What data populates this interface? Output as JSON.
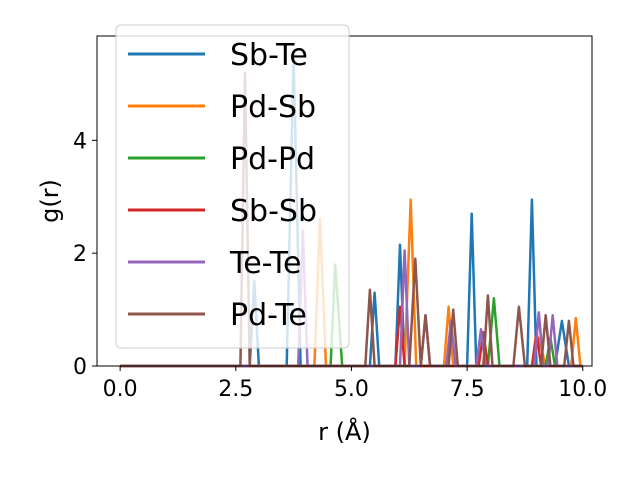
{
  "chart_data": {
    "type": "line",
    "title": "",
    "xlabel": "r (Å)",
    "ylabel": "g(r)",
    "xlim": [
      -0.5,
      10.2
    ],
    "ylim": [
      0,
      5.85
    ],
    "xticks": [
      0.0,
      2.5,
      5.0,
      7.5,
      10.0
    ],
    "xtick_labels": [
      "0.0",
      "2.5",
      "5.0",
      "7.5",
      "10.0"
    ],
    "yticks": [
      0,
      2,
      4
    ],
    "ytick_labels": [
      "0",
      "2",
      "4"
    ],
    "grid": false,
    "legend_position": "upper-left",
    "series": [
      {
        "name": "Sb-Te",
        "color": "#1f77b4",
        "points": [
          [
            0,
            0
          ],
          [
            2.8,
            0
          ],
          [
            2.9,
            1.5
          ],
          [
            3.0,
            0
          ],
          [
            3.6,
            0
          ],
          [
            3.75,
            5.5
          ],
          [
            3.9,
            0
          ],
          [
            5.4,
            0
          ],
          [
            5.5,
            1.3
          ],
          [
            5.6,
            0
          ],
          [
            5.95,
            0
          ],
          [
            6.05,
            2.15
          ],
          [
            6.15,
            0
          ],
          [
            7.5,
            0
          ],
          [
            7.6,
            2.7
          ],
          [
            7.7,
            0
          ],
          [
            8.8,
            0
          ],
          [
            8.9,
            2.95
          ],
          [
            9.0,
            0
          ],
          [
            9.4,
            0
          ],
          [
            9.55,
            0.8
          ],
          [
            9.7,
            0
          ],
          [
            10.0,
            0
          ]
        ]
      },
      {
        "name": "Pd-Sb",
        "color": "#ff7f0e",
        "points": [
          [
            0,
            0
          ],
          [
            4.2,
            0
          ],
          [
            4.32,
            2.6
          ],
          [
            4.45,
            0
          ],
          [
            6.15,
            0
          ],
          [
            6.28,
            2.95
          ],
          [
            6.4,
            0
          ],
          [
            7.0,
            0
          ],
          [
            7.1,
            1.05
          ],
          [
            7.2,
            0
          ],
          [
            8.9,
            0
          ],
          [
            9.05,
            0.5
          ],
          [
            9.2,
            0
          ],
          [
            9.75,
            0
          ],
          [
            9.85,
            0.85
          ],
          [
            9.95,
            0
          ],
          [
            10.0,
            0
          ]
        ]
      },
      {
        "name": "Pd-Pd",
        "color": "#2ca02c",
        "points": [
          [
            0,
            0
          ],
          [
            4.55,
            0
          ],
          [
            4.65,
            1.8
          ],
          [
            4.8,
            0
          ],
          [
            7.95,
            0
          ],
          [
            8.08,
            1.2
          ],
          [
            8.2,
            0
          ],
          [
            9.2,
            0
          ],
          [
            9.3,
            0.5
          ],
          [
            9.4,
            0
          ],
          [
            10.0,
            0
          ]
        ]
      },
      {
        "name": "Sb-Sb",
        "color": "#d62728",
        "points": [
          [
            0,
            0
          ],
          [
            5.95,
            0
          ],
          [
            6.05,
            1.05
          ],
          [
            6.15,
            0
          ],
          [
            7.75,
            0
          ],
          [
            7.85,
            0.6
          ],
          [
            7.95,
            0
          ],
          [
            8.9,
            0
          ],
          [
            9.0,
            0.6
          ],
          [
            9.1,
            0
          ],
          [
            10.0,
            0
          ]
        ]
      },
      {
        "name": "Te-Te",
        "color": "#9467bd",
        "points": [
          [
            0,
            0
          ],
          [
            3.85,
            0
          ],
          [
            3.95,
            2.4
          ],
          [
            4.05,
            0
          ],
          [
            6.05,
            0
          ],
          [
            6.15,
            2.05
          ],
          [
            6.25,
            0
          ],
          [
            6.5,
            0
          ],
          [
            6.6,
            0.9
          ],
          [
            6.7,
            0
          ],
          [
            7.05,
            0
          ],
          [
            7.15,
            0.8
          ],
          [
            7.25,
            0
          ],
          [
            7.7,
            0
          ],
          [
            7.8,
            0.65
          ],
          [
            7.9,
            0
          ],
          [
            8.95,
            0
          ],
          [
            9.05,
            0.95
          ],
          [
            9.15,
            0
          ],
          [
            9.25,
            0
          ],
          [
            9.35,
            0.9
          ],
          [
            9.45,
            0
          ],
          [
            10.0,
            0
          ]
        ]
      },
      {
        "name": "Pd-Te",
        "color": "#8c564b",
        "points": [
          [
            0,
            0
          ],
          [
            2.6,
            0
          ],
          [
            2.7,
            5.2
          ],
          [
            2.8,
            0
          ],
          [
            5.3,
            0
          ],
          [
            5.4,
            1.35
          ],
          [
            5.5,
            0
          ],
          [
            6.25,
            0
          ],
          [
            6.38,
            1.9
          ],
          [
            6.5,
            0
          ],
          [
            6.5,
            0
          ],
          [
            6.6,
            0.9
          ],
          [
            6.7,
            0
          ],
          [
            7.1,
            0
          ],
          [
            7.2,
            1.0
          ],
          [
            7.3,
            0
          ],
          [
            7.85,
            0
          ],
          [
            7.95,
            1.25
          ],
          [
            8.05,
            0
          ],
          [
            8.5,
            0
          ],
          [
            8.62,
            1.05
          ],
          [
            8.75,
            0
          ],
          [
            9.1,
            0
          ],
          [
            9.2,
            0.9
          ],
          [
            9.3,
            0
          ],
          [
            9.6,
            0
          ],
          [
            9.7,
            0.8
          ],
          [
            9.8,
            0
          ],
          [
            10.0,
            0
          ]
        ]
      }
    ]
  }
}
